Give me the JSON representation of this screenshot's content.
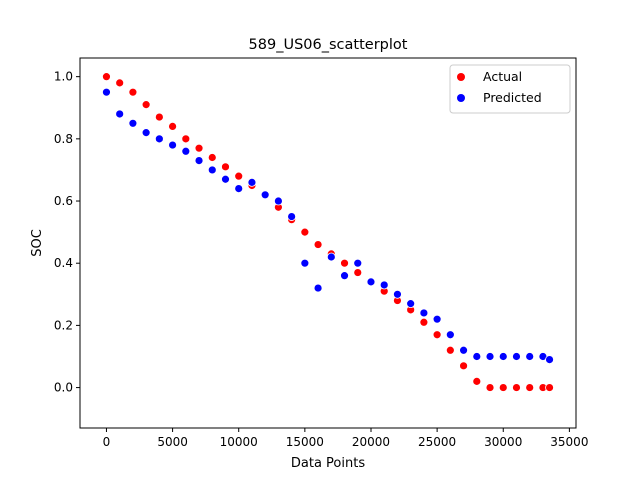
{
  "chart_data": {
    "type": "scatter",
    "title": "589_US06_scatterplot",
    "xlabel": "Data Points",
    "ylabel": "SOC",
    "xlim": [
      -2000,
      35500
    ],
    "ylim": [
      -0.13,
      1.06
    ],
    "xticks": [
      0,
      5000,
      10000,
      15000,
      20000,
      25000,
      30000,
      35000
    ],
    "xtick_labels": [
      "0",
      "5000",
      "10000",
      "15000",
      "20000",
      "25000",
      "30000",
      "35000"
    ],
    "yticks": [
      0.0,
      0.2,
      0.4,
      0.6,
      0.8,
      1.0
    ],
    "ytick_labels": [
      "0.0",
      "0.2",
      "0.4",
      "0.6",
      "0.8",
      "1.0"
    ],
    "grid": false,
    "legend": {
      "position": "top-right"
    },
    "series": [
      {
        "name": "Actual",
        "color": "#ff0000",
        "x": [
          0,
          1000,
          2000,
          3000,
          4000,
          5000,
          6000,
          7000,
          8000,
          9000,
          10000,
          11000,
          12000,
          13000,
          14000,
          15000,
          16000,
          17000,
          18000,
          19000,
          20000,
          21000,
          22000,
          23000,
          24000,
          25000,
          26000,
          27000,
          28000,
          29000,
          30000,
          31000,
          32000,
          33000,
          33500
        ],
        "y": [
          1.0,
          0.98,
          0.95,
          0.91,
          0.87,
          0.84,
          0.8,
          0.77,
          0.74,
          0.71,
          0.68,
          0.65,
          0.62,
          0.58,
          0.54,
          0.5,
          0.46,
          0.43,
          0.4,
          0.37,
          0.34,
          0.31,
          0.28,
          0.25,
          0.21,
          0.17,
          0.12,
          0.07,
          0.02,
          0.0,
          0.0,
          0.0,
          0.0,
          0.0,
          0.0
        ]
      },
      {
        "name": "Predicted",
        "color": "#0000ff",
        "x": [
          0,
          1000,
          2000,
          3000,
          4000,
          5000,
          6000,
          7000,
          8000,
          9000,
          10000,
          11000,
          12000,
          13000,
          14000,
          15000,
          16000,
          17000,
          18000,
          19000,
          20000,
          21000,
          22000,
          23000,
          24000,
          25000,
          26000,
          27000,
          28000,
          29000,
          30000,
          31000,
          32000,
          33000,
          33500
        ],
        "y": [
          0.95,
          0.88,
          0.85,
          0.82,
          0.8,
          0.78,
          0.76,
          0.73,
          0.7,
          0.67,
          0.64,
          0.66,
          0.62,
          0.6,
          0.55,
          0.4,
          0.32,
          0.42,
          0.36,
          0.4,
          0.34,
          0.33,
          0.3,
          0.27,
          0.24,
          0.22,
          0.17,
          0.12,
          0.1,
          0.1,
          0.1,
          0.1,
          0.1,
          0.1,
          0.09
        ]
      }
    ]
  }
}
